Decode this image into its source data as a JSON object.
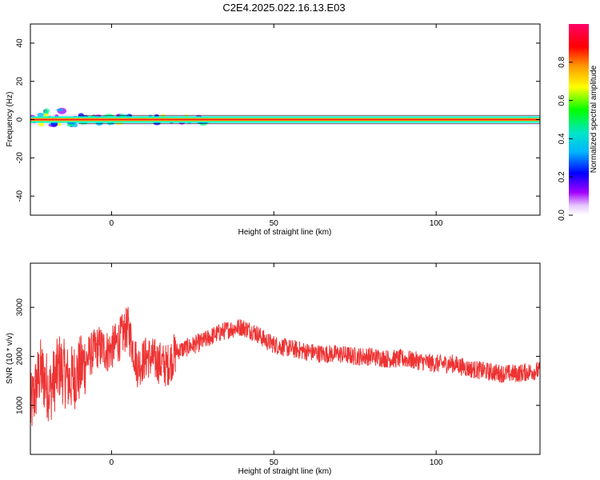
{
  "title": "C2E4.2025.022.16.13.E03",
  "chart_data": [
    {
      "type": "heatmap",
      "xlabel": "Height of straight line (km)",
      "ylabel": "Frequency (Hz)",
      "xlim": [
        -25,
        132
      ],
      "ylim": [
        -50,
        50
      ],
      "xticks": [
        0,
        50,
        100
      ],
      "yticks": [
        -40,
        -20,
        0,
        20,
        40
      ],
      "colorbar": {
        "label": "Normalized spectral amplitude",
        "range": [
          0,
          1
        ],
        "ticks": [
          "0.0",
          "0.2",
          "0.4",
          "0.6",
          "0.8"
        ]
      },
      "ridge_frequency_hz": 0
    },
    {
      "type": "line",
      "xlabel": "Height of straight line (km)",
      "ylabel": "SNR (10 * v/v)",
      "xlim": [
        -25,
        132
      ],
      "ylim": [
        0,
        3900
      ],
      "xticks": [
        0,
        50,
        100
      ],
      "yticks": [
        1000,
        2000,
        3000
      ],
      "series": [
        {
          "color": "#ee3333",
          "x": [
            -25,
            -22,
            -19,
            -16,
            -13,
            -10,
            -7,
            -4,
            -1,
            2,
            5,
            8,
            11,
            14,
            17,
            20,
            24,
            28,
            32,
            36,
            40,
            44,
            48,
            52,
            56,
            60,
            65,
            70,
            75,
            80,
            85,
            90,
            95,
            100,
            105,
            110,
            115,
            120,
            125,
            130,
            132
          ],
          "values": [
            900,
            1700,
            1300,
            1800,
            1500,
            1700,
            2000,
            2200,
            2100,
            2300,
            2600,
            1800,
            2000,
            1900,
            1800,
            2100,
            2200,
            2300,
            2450,
            2550,
            2600,
            2500,
            2300,
            2200,
            2150,
            2100,
            2050,
            2050,
            2000,
            2000,
            1950,
            1950,
            1900,
            1850,
            1850,
            1750,
            1700,
            1650,
            1650,
            1700,
            1700
          ]
        }
      ]
    }
  ]
}
